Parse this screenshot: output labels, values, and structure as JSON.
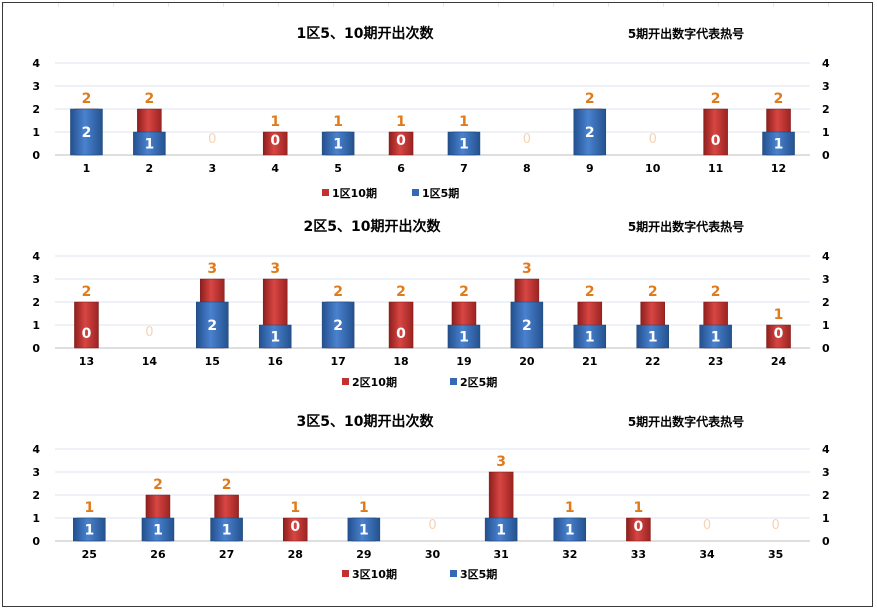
{
  "chart_data": [
    {
      "type": "bar",
      "title": "1区5、10期开出次数",
      "note": "5期开出数字代表热号",
      "categories": [
        "1",
        "2",
        "3",
        "4",
        "5",
        "6",
        "7",
        "8",
        "9",
        "10",
        "11",
        "12"
      ],
      "series": [
        {
          "name": "1区10期",
          "values": [
            2,
            2,
            0,
            1,
            1,
            1,
            1,
            0,
            2,
            0,
            2,
            2
          ],
          "color": "#c0322f"
        },
        {
          "name": "1区5期",
          "values": [
            2,
            1,
            0,
            0,
            1,
            0,
            1,
            0,
            2,
            0,
            0,
            1
          ],
          "color": "#3568b5"
        }
      ],
      "ylim": [
        0,
        4
      ],
      "yticks": [
        "0",
        "1",
        "2",
        "3",
        "4"
      ],
      "legend": "bottom",
      "grid": true
    },
    {
      "type": "bar",
      "title": "2区5、10期开出次数",
      "note": "5期开出数字代表热号",
      "categories": [
        "13",
        "14",
        "15",
        "16",
        "17",
        "18",
        "19",
        "20",
        "21",
        "22",
        "23",
        "24"
      ],
      "series": [
        {
          "name": "2区10期",
          "values": [
            2,
            0,
            3,
            3,
            2,
            2,
            2,
            3,
            2,
            2,
            2,
            1
          ],
          "color": "#c0322f"
        },
        {
          "name": "2区5期",
          "values": [
            0,
            0,
            2,
            1,
            2,
            0,
            1,
            2,
            1,
            1,
            1,
            0
          ],
          "color": "#3568b5"
        }
      ],
      "ylim": [
        0,
        4
      ],
      "yticks": [
        "0",
        "1",
        "2",
        "3",
        "4"
      ],
      "legend": "bottom",
      "grid": true
    },
    {
      "type": "bar",
      "title": "3区5、10期开出次数",
      "note": "5期开出数字代表热号",
      "categories": [
        "25",
        "26",
        "27",
        "28",
        "29",
        "30",
        "31",
        "32",
        "33",
        "34",
        "35"
      ],
      "series": [
        {
          "name": "3区10期",
          "values": [
            1,
            2,
            2,
            1,
            1,
            0,
            3,
            1,
            1,
            0,
            0
          ],
          "color": "#c0322f"
        },
        {
          "name": "3区5期",
          "values": [
            1,
            1,
            1,
            0,
            1,
            0,
            1,
            1,
            0,
            0,
            0
          ],
          "color": "#3568b5"
        }
      ],
      "ylim": [
        0,
        4
      ],
      "yticks": [
        "0",
        "1",
        "2",
        "3",
        "4"
      ],
      "legend": "bottom",
      "grid": true
    }
  ]
}
